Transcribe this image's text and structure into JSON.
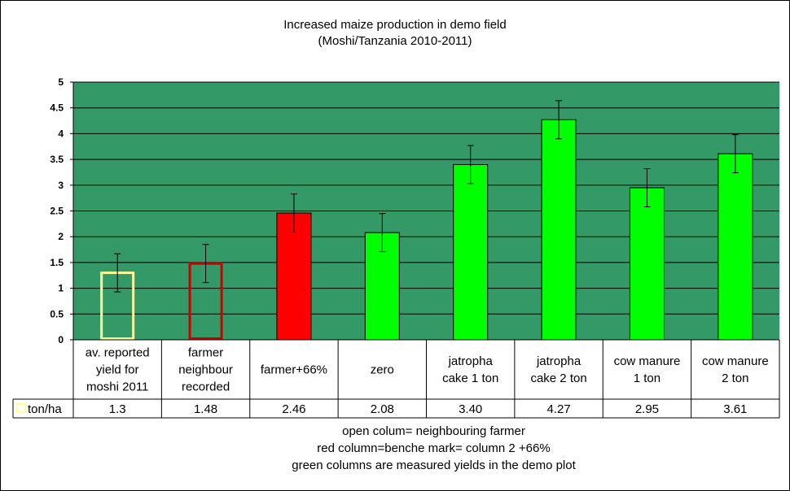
{
  "chart_data": {
    "type": "bar",
    "title": "Increased maize production in demo field",
    "subtitle": "(Moshi/Tanzania 2010-2011)",
    "categories": [
      [
        "av. reported",
        "yield for",
        "moshi 2011"
      ],
      [
        "farmer",
        "neighbour",
        "recorded"
      ],
      [
        "farmer+66%"
      ],
      [
        "zero"
      ],
      [
        "jatropha",
        "cake 1 ton"
      ],
      [
        "jatropha",
        "cake 2 ton"
      ],
      [
        "cow manure",
        "1 ton"
      ],
      [
        "cow manure",
        "2 ton"
      ]
    ],
    "series": [
      {
        "name": "ton/ha",
        "values": [
          1.3,
          1.48,
          2.46,
          2.08,
          3.4,
          4.27,
          2.95,
          3.61
        ],
        "value_labels": [
          "1.3",
          "1.48",
          "2.46",
          "2.08",
          "3.40",
          "4.27",
          "2.95",
          "3.61"
        ],
        "error": [
          0.37,
          0.37,
          0.37,
          0.37,
          0.37,
          0.37,
          0.37,
          0.37
        ],
        "styles": [
          "open-yellow",
          "open-red",
          "red",
          "green",
          "green",
          "green",
          "green",
          "green"
        ]
      }
    ],
    "ylim": [
      0,
      5
    ],
    "yticks": [
      0,
      0.5,
      1,
      1.5,
      2,
      2.5,
      3,
      3.5,
      4,
      4.5,
      5
    ],
    "ytick_labels": [
      "0",
      "0.5",
      "1",
      "1.5",
      "2",
      "2.5",
      "3",
      "3.5",
      "4",
      "4.5",
      "5"
    ],
    "grid": true,
    "legend_placement": "data-table",
    "colors": {
      "plot_area": "#339966",
      "gridline": "#000000",
      "green_bar": "#00ff00",
      "red_bar": "#ff0000",
      "open_yellow_border": "#ffff99",
      "open_red_border": "#cc0000"
    }
  },
  "notes": [
    "open colum= neighbouring farmer",
    "red column=benche mark= column 2 +66%",
    "green columns are measured yields in the demo plot"
  ]
}
